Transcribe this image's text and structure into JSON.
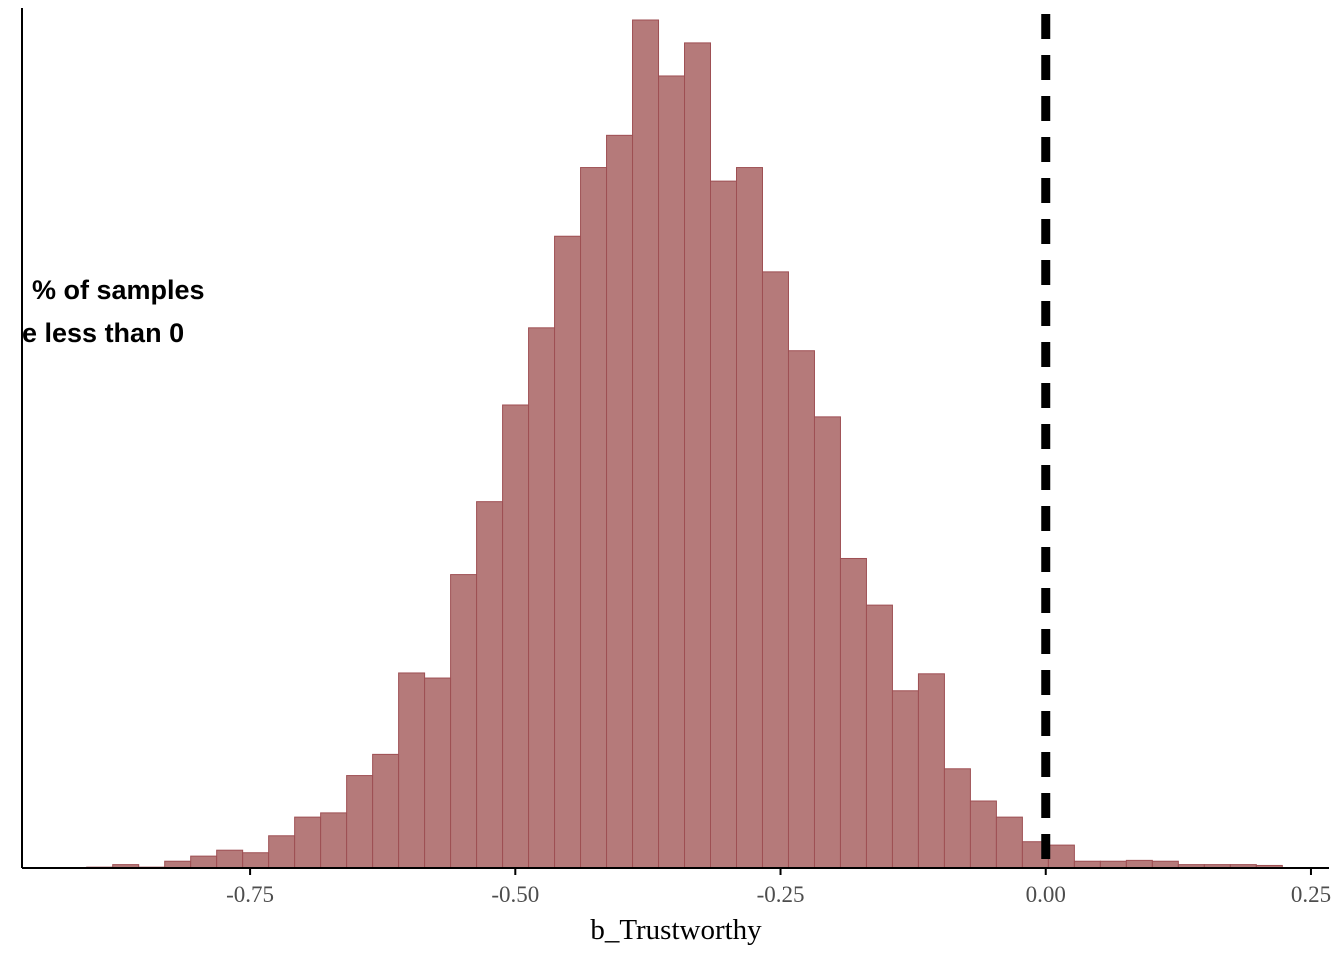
{
  "chart_data": {
    "type": "bar",
    "title": "",
    "xlabel": "b_Trustworthy",
    "ylabel": "",
    "xlim": [
      -0.965,
      0.267
    ],
    "ylim": [
      0,
      1000
    ],
    "x_ticks": [
      -0.75,
      -0.5,
      -0.25,
      0.0,
      0.25
    ],
    "x_tick_labels": [
      "-0.75",
      "-0.50",
      "-0.25",
      "0.00",
      "0.25"
    ],
    "grid": false,
    "legend": "none",
    "bin_width": 0.0245,
    "bins": [
      {
        "x0": -0.904,
        "x1": -0.8795,
        "count": 1
      },
      {
        "x0": -0.8795,
        "x1": -0.855,
        "count": 4
      },
      {
        "x0": -0.855,
        "x1": -0.8305,
        "count": 1
      },
      {
        "x0": -0.8305,
        "x1": -0.806,
        "count": 8
      },
      {
        "x0": -0.806,
        "x1": -0.7815,
        "count": 14
      },
      {
        "x0": -0.7815,
        "x1": -0.757,
        "count": 21
      },
      {
        "x0": -0.757,
        "x1": -0.7325,
        "count": 18
      },
      {
        "x0": -0.7325,
        "x1": -0.708,
        "count": 38
      },
      {
        "x0": -0.708,
        "x1": -0.6835,
        "count": 60
      },
      {
        "x0": -0.6835,
        "x1": -0.659,
        "count": 65
      },
      {
        "x0": -0.659,
        "x1": -0.6345,
        "count": 109
      },
      {
        "x0": -0.6345,
        "x1": -0.61,
        "count": 134
      },
      {
        "x0": -0.61,
        "x1": -0.5855,
        "count": 230
      },
      {
        "x0": -0.5855,
        "x1": -0.561,
        "count": 224
      },
      {
        "x0": -0.561,
        "x1": -0.5365,
        "count": 346
      },
      {
        "x0": -0.5365,
        "x1": -0.512,
        "count": 432
      },
      {
        "x0": -0.512,
        "x1": -0.4875,
        "count": 546
      },
      {
        "x0": -0.4875,
        "x1": -0.463,
        "count": 637
      },
      {
        "x0": -0.463,
        "x1": -0.4385,
        "count": 745
      },
      {
        "x0": -0.4385,
        "x1": -0.414,
        "count": 826
      },
      {
        "x0": -0.414,
        "x1": -0.3895,
        "count": 864
      },
      {
        "x0": -0.3895,
        "x1": -0.365,
        "count": 1000
      },
      {
        "x0": -0.365,
        "x1": -0.3405,
        "count": 934
      },
      {
        "x0": -0.3405,
        "x1": -0.316,
        "count": 973
      },
      {
        "x0": -0.316,
        "x1": -0.2915,
        "count": 810
      },
      {
        "x0": -0.2915,
        "x1": -0.267,
        "count": 826
      },
      {
        "x0": -0.267,
        "x1": -0.2425,
        "count": 703
      },
      {
        "x0": -0.2425,
        "x1": -0.218,
        "count": 610
      },
      {
        "x0": -0.218,
        "x1": -0.1935,
        "count": 532
      },
      {
        "x0": -0.1935,
        "x1": -0.169,
        "count": 365
      },
      {
        "x0": -0.169,
        "x1": -0.1445,
        "count": 310
      },
      {
        "x0": -0.1445,
        "x1": -0.12,
        "count": 209
      },
      {
        "x0": -0.12,
        "x1": -0.0955,
        "count": 229
      },
      {
        "x0": -0.0955,
        "x1": -0.071,
        "count": 117
      },
      {
        "x0": -0.071,
        "x1": -0.0465,
        "count": 79
      },
      {
        "x0": -0.0465,
        "x1": -0.022,
        "count": 60
      },
      {
        "x0": -0.022,
        "x1": 0.0025,
        "count": 31
      },
      {
        "x0": 0.0025,
        "x1": 0.027,
        "count": 27
      },
      {
        "x0": 0.027,
        "x1": 0.0515,
        "count": 8
      },
      {
        "x0": 0.0515,
        "x1": 0.076,
        "count": 8
      },
      {
        "x0": 0.076,
        "x1": 0.1005,
        "count": 9
      },
      {
        "x0": 0.1005,
        "x1": 0.125,
        "count": 8
      },
      {
        "x0": 0.125,
        "x1": 0.1495,
        "count": 4
      },
      {
        "x0": 0.1495,
        "x1": 0.174,
        "count": 4
      },
      {
        "x0": 0.174,
        "x1": 0.1985,
        "count": 4
      },
      {
        "x0": 0.1985,
        "x1": 0.223,
        "count": 3
      }
    ],
    "reference_line": {
      "x": 0.0,
      "style": "dashed",
      "color": "#000000"
    },
    "annotation": [
      "% of samples",
      "e less than 0"
    ],
    "bar_fill": "#b57a7a",
    "bar_stroke": "#9e4f53"
  }
}
